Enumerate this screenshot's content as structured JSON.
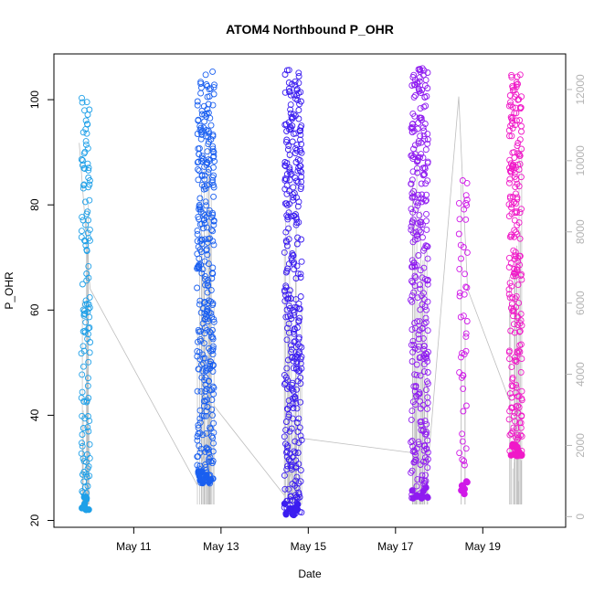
{
  "chart_data": {
    "type": "scatter",
    "title": "ATOM4 Northbound P_OHR",
    "xlabel": "Date",
    "ylabel": "P_OHR",
    "x_tick_labels": [
      "May 11",
      "May 13",
      "May 15",
      "May 17",
      "May 19"
    ],
    "x_tick_days": [
      11,
      13,
      15,
      17,
      19
    ],
    "xlim_days": [
      9.17,
      20.9
    ],
    "ylim": [
      18.7,
      108.7
    ],
    "y_ticks": [
      20,
      40,
      60,
      80,
      100
    ],
    "y2_ticks": [
      0,
      2000,
      4000,
      6000,
      8000,
      10000,
      12000
    ],
    "y2lim": [
      -300,
      13000
    ],
    "clusters": [
      {
        "day_start": 9.8,
        "day_end": 10.0,
        "ymin": 22,
        "ymax": 101,
        "color": "#1fa0e8",
        "count": 130
      },
      {
        "day_start": 12.45,
        "day_end": 12.85,
        "ymin": 27,
        "ymax": 105.5,
        "color": "#1a5ff0",
        "count": 330
      },
      {
        "day_start": 14.45,
        "day_end": 14.85,
        "ymin": 21,
        "ymax": 106,
        "color": "#3b1df0",
        "count": 340
      },
      {
        "day_start": 17.35,
        "day_end": 17.75,
        "ymin": 24,
        "ymax": 106,
        "color": "#8f1cf0",
        "count": 300
      },
      {
        "day_start": 18.45,
        "day_end": 18.65,
        "ymin": 25,
        "ymax": 86,
        "color": "#d019e8",
        "count": 45
      },
      {
        "day_start": 19.6,
        "day_end": 19.9,
        "ymin": 32,
        "ymax": 105,
        "color": "#f019c8",
        "count": 230
      }
    ],
    "secondary_series": {
      "color": "#bebebe",
      "points_days": [
        9.75,
        10.0,
        12.45,
        12.85,
        14.45,
        14.85,
        17.35,
        17.75,
        18.45,
        18.65,
        19.6
      ],
      "points_values": [
        10500,
        6400,
        900,
        3100,
        600,
        2200,
        1800,
        1500,
        11800,
        6400,
        3300
      ]
    },
    "grid": false,
    "legend": "none"
  }
}
